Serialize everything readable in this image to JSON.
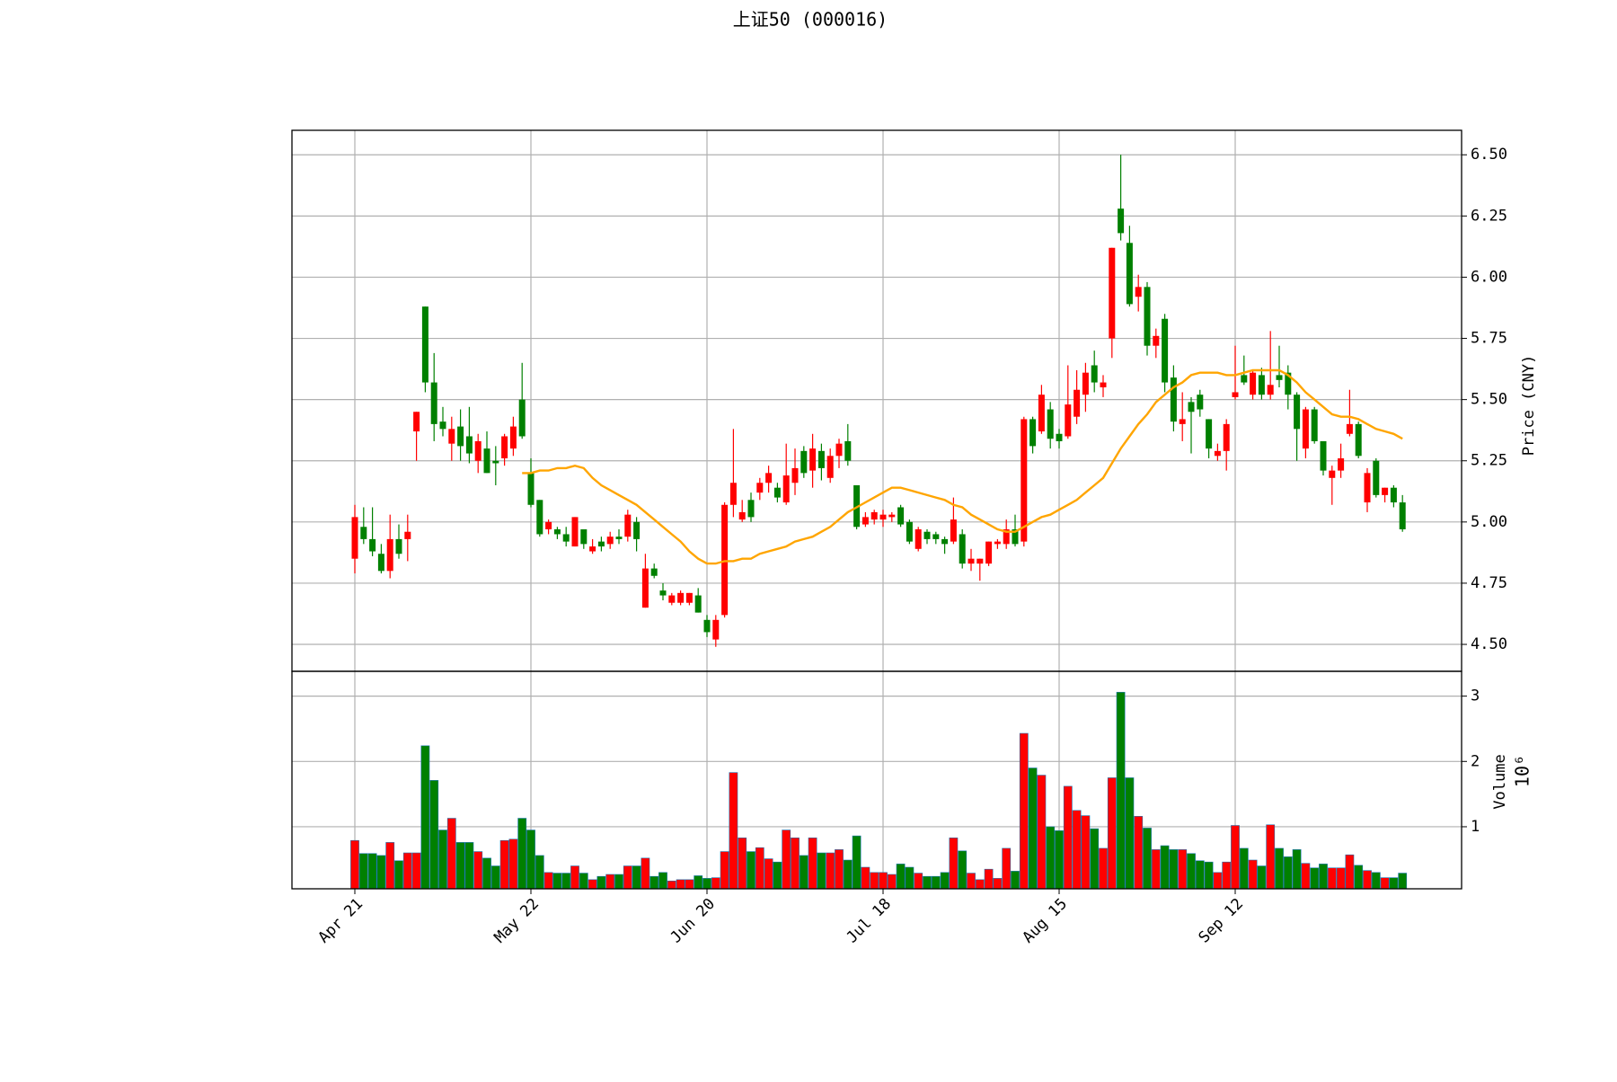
{
  "chart_data": {
    "type": "candlestick",
    "title": "上证50 (000016)",
    "categories": [
      "Apr 21",
      null,
      null,
      null,
      null,
      null,
      null,
      null,
      null,
      null,
      null,
      null,
      null,
      null,
      null,
      null,
      null,
      null,
      null,
      null,
      "May 22",
      null,
      null,
      null,
      null,
      null,
      null,
      null,
      null,
      null,
      null,
      null,
      null,
      null,
      null,
      null,
      null,
      null,
      null,
      null,
      "Jun 20",
      null,
      null,
      null,
      null,
      null,
      null,
      null,
      null,
      null,
      null,
      null,
      null,
      null,
      null,
      null,
      null,
      null,
      null,
      null,
      "Jul 18",
      null,
      null,
      null,
      null,
      null,
      null,
      null,
      null,
      null,
      null,
      null,
      null,
      null,
      null,
      null,
      null,
      null,
      null,
      null,
      "Aug 15",
      null,
      null,
      null,
      null,
      null,
      null,
      null,
      null,
      null,
      null,
      null,
      null,
      null,
      null,
      null,
      null,
      null,
      null,
      null,
      "Sep 12",
      null,
      null,
      null,
      null,
      null,
      null,
      null,
      null,
      null,
      null,
      null,
      null,
      null,
      null,
      null,
      null,
      null,
      null,
      null
    ],
    "open": [
      4.85,
      4.98,
      4.93,
      4.87,
      4.8,
      4.93,
      4.93,
      5.37,
      5.88,
      5.57,
      5.41,
      5.32,
      5.39,
      5.35,
      5.25,
      5.3,
      5.25,
      5.26,
      5.3,
      5.5,
      5.2,
      5.09,
      4.97,
      4.97,
      4.95,
      4.9,
      4.97,
      4.88,
      4.92,
      4.91,
      4.94,
      4.94,
      5.0,
      4.65,
      4.81,
      4.72,
      4.67,
      4.67,
      4.67,
      4.7,
      4.6,
      4.52,
      4.62,
      5.07,
      5.01,
      5.09,
      5.12,
      5.16,
      5.14,
      5.08,
      5.16,
      5.29,
      5.21,
      5.29,
      5.18,
      5.27,
      5.33,
      5.15,
      4.99,
      5.01,
      5.01,
      5.02,
      5.06,
      5.0,
      4.89,
      4.96,
      4.95,
      4.93,
      4.92,
      4.95,
      4.83,
      4.83,
      4.83,
      4.91,
      4.91,
      4.97,
      4.92,
      5.42,
      5.37,
      5.46,
      5.36,
      5.35,
      5.43,
      5.52,
      5.64,
      5.55,
      5.75,
      6.28,
      6.14,
      5.92,
      5.96,
      5.72,
      5.83,
      5.59,
      5.4,
      5.49,
      5.52,
      5.42,
      5.27,
      5.29,
      5.51,
      5.6,
      5.52,
      5.6,
      5.52,
      5.6,
      5.61,
      5.52,
      5.3,
      5.46,
      5.33,
      5.18,
      5.21,
      5.36,
      5.4,
      5.08,
      5.25,
      5.11,
      5.14,
      5.08
    ],
    "high": [
      5.07,
      5.06,
      5.06,
      4.91,
      5.03,
      4.99,
      5.03,
      5.45,
      5.88,
      5.69,
      5.47,
      5.43,
      5.46,
      5.47,
      5.36,
      5.37,
      5.31,
      5.36,
      5.43,
      5.65,
      5.26,
      5.09,
      5.01,
      4.98,
      4.98,
      5.02,
      4.97,
      4.93,
      4.94,
      4.96,
      4.97,
      5.05,
      5.02,
      4.87,
      4.83,
      4.75,
      4.71,
      4.72,
      4.71,
      4.73,
      4.62,
      4.62,
      5.08,
      5.38,
      5.09,
      5.12,
      5.18,
      5.23,
      5.16,
      5.32,
      5.3,
      5.31,
      5.36,
      5.32,
      5.3,
      5.34,
      5.4,
      5.15,
      5.04,
      5.05,
      5.05,
      5.04,
      5.07,
      5.01,
      4.98,
      4.97,
      4.96,
      4.94,
      5.1,
      4.97,
      4.89,
      4.85,
      4.92,
      4.93,
      5.01,
      5.03,
      5.43,
      5.43,
      5.56,
      5.49,
      5.38,
      5.64,
      5.62,
      5.65,
      5.7,
      5.6,
      6.12,
      6.5,
      6.21,
      6.01,
      5.98,
      5.79,
      5.85,
      5.64,
      5.53,
      5.51,
      5.54,
      5.42,
      5.32,
      5.42,
      5.72,
      5.68,
      5.62,
      5.63,
      5.78,
      5.72,
      5.64,
      5.53,
      5.47,
      5.47,
      5.33,
      5.23,
      5.32,
      5.54,
      5.41,
      5.22,
      5.26,
      5.14,
      5.15,
      5.11
    ],
    "low": [
      4.79,
      4.91,
      4.86,
      4.79,
      4.77,
      4.85,
      4.84,
      5.25,
      5.53,
      5.33,
      5.35,
      5.25,
      5.25,
      5.24,
      5.2,
      5.2,
      5.15,
      5.23,
      5.27,
      5.34,
      5.06,
      4.94,
      4.95,
      4.93,
      4.9,
      4.9,
      4.89,
      4.87,
      4.88,
      4.89,
      4.91,
      4.92,
      4.88,
      4.65,
      4.77,
      4.68,
      4.66,
      4.66,
      4.66,
      4.63,
      4.53,
      4.49,
      4.61,
      5.02,
      5.0,
      5.0,
      5.09,
      5.12,
      5.08,
      5.07,
      5.11,
      5.18,
      5.14,
      5.17,
      5.16,
      5.22,
      5.23,
      4.97,
      4.98,
      4.99,
      4.98,
      5.0,
      4.98,
      4.91,
      4.88,
      4.91,
      4.91,
      4.87,
      4.91,
      4.81,
      4.8,
      4.76,
      4.82,
      4.89,
      4.89,
      4.9,
      4.9,
      5.28,
      5.36,
      5.3,
      5.3,
      5.34,
      5.4,
      5.45,
      5.53,
      5.51,
      5.67,
      6.15,
      5.88,
      5.86,
      5.68,
      5.67,
      5.53,
      5.37,
      5.33,
      5.28,
      5.43,
      5.26,
      5.25,
      5.21,
      5.5,
      5.56,
      5.5,
      5.5,
      5.5,
      5.55,
      5.46,
      5.25,
      5.26,
      5.32,
      5.19,
      5.07,
      5.18,
      5.35,
      5.26,
      5.04,
      5.1,
      5.08,
      5.06,
      4.96
    ],
    "close": [
      5.02,
      4.93,
      4.88,
      4.8,
      4.93,
      4.87,
      4.96,
      5.45,
      5.57,
      5.4,
      5.38,
      5.38,
      5.31,
      5.28,
      5.33,
      5.2,
      5.24,
      5.35,
      5.39,
      5.35,
      5.07,
      4.95,
      5.0,
      4.95,
      4.92,
      5.02,
      4.91,
      4.9,
      4.9,
      4.94,
      4.93,
      5.03,
      4.93,
      4.81,
      4.78,
      4.7,
      4.7,
      4.71,
      4.71,
      4.63,
      4.55,
      4.6,
      5.07,
      5.16,
      5.04,
      5.02,
      5.16,
      5.2,
      5.1,
      5.19,
      5.22,
      5.2,
      5.3,
      5.22,
      5.27,
      5.32,
      5.25,
      4.98,
      5.02,
      5.04,
      5.03,
      5.03,
      4.99,
      4.92,
      4.97,
      4.93,
      4.93,
      4.91,
      5.01,
      4.83,
      4.85,
      4.85,
      4.92,
      4.92,
      4.97,
      4.91,
      5.42,
      5.31,
      5.52,
      5.34,
      5.33,
      5.48,
      5.54,
      5.61,
      5.57,
      5.57,
      6.12,
      6.18,
      5.89,
      5.96,
      5.72,
      5.76,
      5.57,
      5.41,
      5.42,
      5.45,
      5.46,
      5.3,
      5.29,
      5.4,
      5.53,
      5.57,
      5.61,
      5.52,
      5.56,
      5.58,
      5.52,
      5.38,
      5.46,
      5.33,
      5.21,
      5.21,
      5.26,
      5.4,
      5.27,
      5.2,
      5.11,
      5.14,
      5.08,
      4.97
    ],
    "up_color": "#ff0000",
    "down_color": "#008000",
    "ma": {
      "color": "#ffa500",
      "values": [
        null,
        null,
        null,
        null,
        null,
        null,
        null,
        null,
        null,
        null,
        null,
        null,
        null,
        null,
        null,
        null,
        null,
        null,
        null,
        5.2,
        5.2,
        5.21,
        5.21,
        5.22,
        5.22,
        5.23,
        5.22,
        5.18,
        5.15,
        5.13,
        5.11,
        5.09,
        5.07,
        5.04,
        5.01,
        4.98,
        4.95,
        4.92,
        4.88,
        4.85,
        4.83,
        4.83,
        4.84,
        4.84,
        4.85,
        4.85,
        4.87,
        4.88,
        4.89,
        4.9,
        4.92,
        4.93,
        4.94,
        4.96,
        4.98,
        5.01,
        5.04,
        5.06,
        5.08,
        5.1,
        5.12,
        5.14,
        5.14,
        5.13,
        5.12,
        5.11,
        5.1,
        5.09,
        5.07,
        5.06,
        5.03,
        5.01,
        4.99,
        4.97,
        4.96,
        4.96,
        4.98,
        5.0,
        5.02,
        5.03,
        5.05,
        5.07,
        5.09,
        5.12,
        5.15,
        5.18,
        5.24,
        5.3,
        5.35,
        5.4,
        5.44,
        5.49,
        5.52,
        5.55,
        5.57,
        5.6,
        5.61,
        5.61,
        5.61,
        5.6,
        5.6,
        5.61,
        5.62,
        5.62,
        5.62,
        5.62,
        5.6,
        5.57,
        5.53,
        5.5,
        5.47,
        5.44,
        5.43,
        5.43,
        5.42,
        5.4,
        5.38,
        5.37,
        5.36,
        5.34
      ]
    },
    "ylabel": "Price (CNY)",
    "ylim": [
      4.39,
      6.6
    ],
    "yticks": [
      {
        "value": 4.5,
        "label": "4.50"
      },
      4.75,
      {
        "value": 5,
        "label": "5.00"
      },
      5.25,
      {
        "value": 5.5,
        "label": "5.50"
      },
      5.75,
      {
        "value": 6,
        "label": "6.00"
      },
      6.25,
      {
        "value": 6.5,
        "label": "6.50"
      }
    ],
    "grid": true,
    "volume": {
      "ylabel": "Volume",
      "offset_label": "10⁶",
      "ylim": [
        0.05,
        3.38
      ],
      "yticks": [
        1,
        2,
        3
      ],
      "values": [
        0.79,
        0.59,
        0.59,
        0.56,
        0.76,
        0.48,
        0.6,
        0.6,
        2.24,
        1.71,
        0.95,
        1.13,
        0.76,
        0.76,
        0.62,
        0.52,
        0.4,
        0.79,
        0.81,
        1.13,
        0.95,
        0.56,
        0.3,
        0.29,
        0.29,
        0.4,
        0.29,
        0.19,
        0.24,
        0.27,
        0.27,
        0.4,
        0.4,
        0.52,
        0.24,
        0.3,
        0.17,
        0.19,
        0.19,
        0.25,
        0.21,
        0.22,
        0.62,
        1.83,
        0.83,
        0.62,
        0.68,
        0.51,
        0.46,
        0.95,
        0.83,
        0.56,
        0.83,
        0.6,
        0.6,
        0.65,
        0.49,
        0.86,
        0.38,
        0.3,
        0.3,
        0.27,
        0.43,
        0.38,
        0.29,
        0.24,
        0.24,
        0.3,
        0.83,
        0.63,
        0.29,
        0.19,
        0.35,
        0.21,
        0.67,
        0.32,
        2.43,
        1.9,
        1.79,
        1.0,
        0.94,
        1.62,
        1.25,
        1.17,
        0.97,
        0.67,
        1.75,
        3.06,
        1.75,
        1.16,
        0.98,
        0.65,
        0.71,
        0.65,
        0.65,
        0.59,
        0.48,
        0.46,
        0.3,
        0.46,
        1.02,
        0.67,
        0.49,
        0.4,
        1.03,
        0.67,
        0.54,
        0.65,
        0.44,
        0.37,
        0.43,
        0.37,
        0.37,
        0.57,
        0.41,
        0.33,
        0.3,
        0.22,
        0.22,
        0.29
      ]
    }
  }
}
